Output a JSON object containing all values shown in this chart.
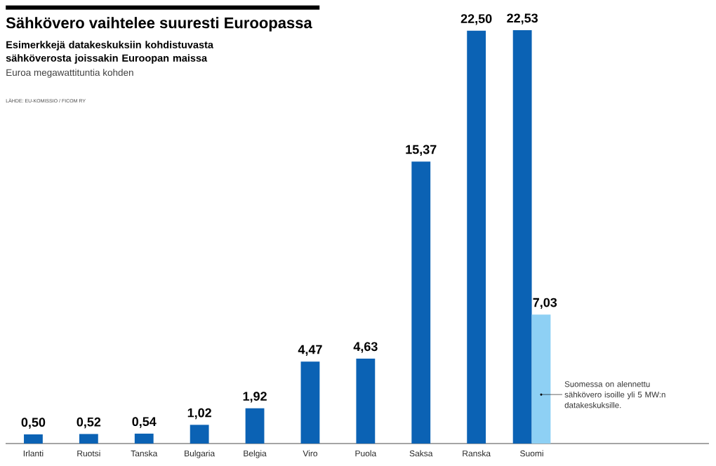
{
  "chart_data": {
    "type": "bar",
    "title": "Sähkövero vaihtelee suuresti Euroopassa",
    "subtitle": "Esimerkkejä datakeskuksiin kohdistuvasta sähköverosta joissakin Euroopan maissa",
    "ylabel": "Euroa megawattituntia kohden",
    "categories": [
      "Irlanti",
      "Ruotsi",
      "Tanska",
      "Bulgaria",
      "Belgia",
      "Viro",
      "Puola",
      "Saksa",
      "Ranska",
      "Suomi"
    ],
    "series": [
      {
        "color": "#0b62b4",
        "values": [
          0.5,
          0.52,
          0.54,
          1.02,
          1.92,
          4.47,
          4.63,
          15.37,
          22.5,
          22.53
        ],
        "value_labels": [
          "0,50",
          "0,52",
          "0,54",
          "1,02",
          "1,92",
          "4,47",
          "4,63",
          "15,37",
          "22,50",
          "22,53"
        ]
      },
      {
        "color": "#8ed0f4",
        "values": [
          null,
          null,
          null,
          null,
          null,
          null,
          null,
          null,
          null,
          7.03
        ],
        "value_labels": [
          null,
          null,
          null,
          null,
          null,
          null,
          null,
          null,
          null,
          "7,03"
        ]
      }
    ],
    "annotations": [
      "LÄHDE: EU-KOMISSIO / FICOM RY",
      "Suomessa on alennettu sähkövero isoille yli 5 MW:n datakeskuksille."
    ]
  }
}
